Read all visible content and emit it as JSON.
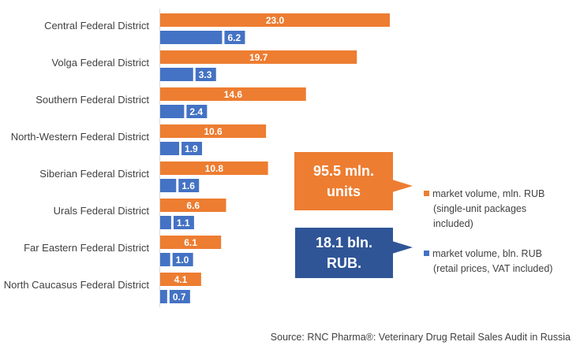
{
  "chart_data": {
    "type": "bar",
    "orientation": "horizontal",
    "categories": [
      "Central Federal District",
      "Volga Federal District",
      "Southern Federal District",
      "North-Western Federal District",
      "Siberian Federal District",
      "Urals Federal District",
      "Far Eastern Federal District",
      "North Caucasus Federal District"
    ],
    "series": [
      {
        "values": [
          23.0,
          19.7,
          14.6,
          10.6,
          10.8,
          6.6,
          6.1,
          4.1
        ],
        "labels": [
          "23.0",
          "19.7",
          "14.6",
          "10.6",
          "10.8",
          "6.6",
          "6.1",
          "4.1"
        ],
        "color": "#ED7D31"
      },
      {
        "values": [
          6.2,
          3.3,
          2.4,
          1.9,
          1.6,
          1.1,
          1.0,
          0.7
        ],
        "labels": [
          "6.2",
          "3.3",
          "2.4",
          "1.9",
          "1.6",
          "1.1",
          "1.0",
          "0.7"
        ],
        "color": "#4472C4"
      }
    ],
    "xlim": [
      0,
      25
    ],
    "grid": false,
    "legend": {
      "placement": "right",
      "items": [
        {
          "line1": "market volume, mln. RUB",
          "line2": "(single-unit packages",
          "line3": "included)",
          "color": "#ED7D31"
        },
        {
          "line1": "market volume, bln. RUB",
          "line2": "(retail prices, VAT included)",
          "color": "#4472C4"
        }
      ]
    },
    "callouts": [
      {
        "line1": "95.5 mln.",
        "line2": "units",
        "color": "#ED7D31"
      },
      {
        "line1": "18.1 bln.",
        "line2": "RUB.",
        "color": "#2F5597"
      }
    ],
    "source": "Source: RNC Pharma®:  Veterinary Drug Retail Sales Audit in Russia"
  }
}
